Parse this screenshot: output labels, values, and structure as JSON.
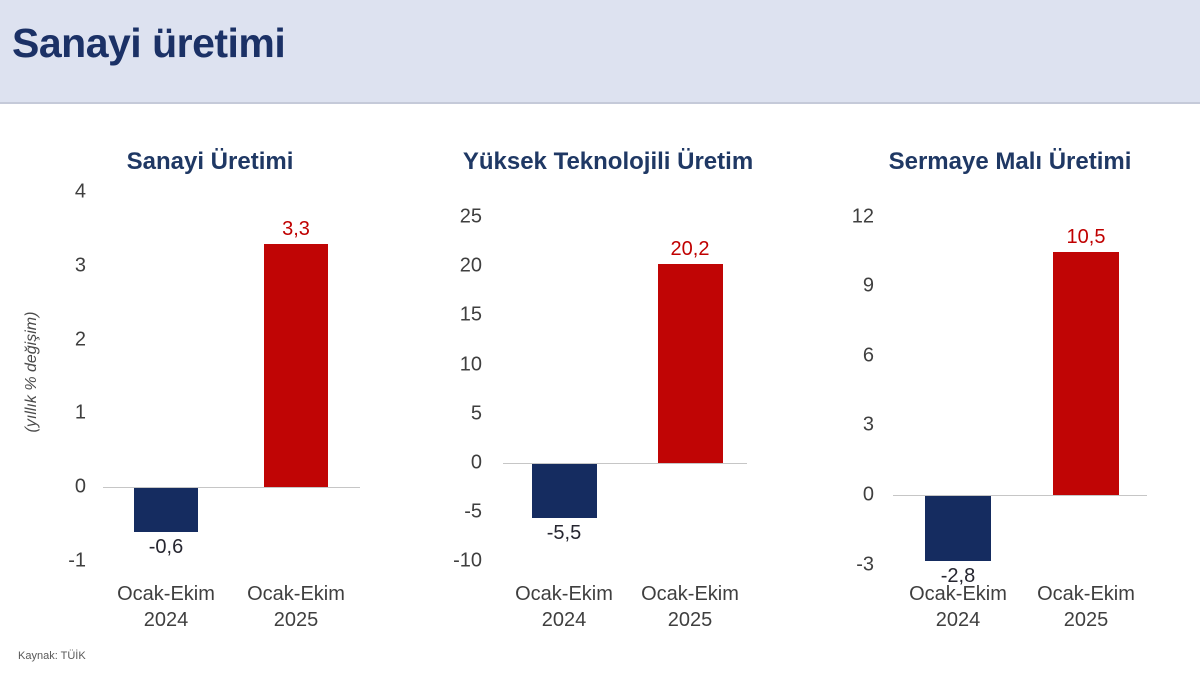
{
  "header": {
    "title": "Sanayi üretimi"
  },
  "source": "Kaynak: TÜİK",
  "colors": {
    "header_bg": "#dde2f0",
    "title_navy": "#1b3166",
    "chart_title_navy": "#1f3864",
    "bar_navy": "#152c60",
    "bar_red": "#c00505",
    "label_red": "#c00000",
    "label_dark": "#262630",
    "tick_gray": "#3f3f3f"
  },
  "chart_data": [
    {
      "type": "bar",
      "title": "Sanayi Üretimi",
      "ylabel": "(yıllık % değişim)",
      "categories": [
        [
          "Ocak-Ekim",
          "2024"
        ],
        [
          "Ocak-Ekim",
          "2025"
        ]
      ],
      "values": [
        -0.6,
        3.3
      ],
      "value_labels": [
        "-0,6",
        "3,3"
      ],
      "bar_color_names": [
        "navy",
        "red"
      ],
      "yticks": [
        "4",
        "3",
        "2",
        "1",
        "0",
        "-1"
      ],
      "ytick_values": [
        4,
        3,
        2,
        1,
        0,
        -1
      ],
      "ylim": [
        -1,
        4
      ],
      "grid": false,
      "legend": "none"
    },
    {
      "type": "bar",
      "title": "Yüksek Teknolojili Üretim",
      "ylabel": "",
      "categories": [
        [
          "Ocak-Ekim",
          "2024"
        ],
        [
          "Ocak-Ekim",
          "2025"
        ]
      ],
      "values": [
        -5.5,
        20.2
      ],
      "value_labels": [
        "-5,5",
        "20,2"
      ],
      "bar_color_names": [
        "navy",
        "red"
      ],
      "yticks": [
        "25",
        "20",
        "15",
        "10",
        "5",
        "0",
        "-5",
        "-10"
      ],
      "ytick_values": [
        25,
        20,
        15,
        10,
        5,
        0,
        -5,
        -10
      ],
      "ylim": [
        -10,
        25
      ],
      "grid": false,
      "legend": "none"
    },
    {
      "type": "bar",
      "title": "Sermaye Malı Üretimi",
      "ylabel": "",
      "categories": [
        [
          "Ocak-Ekim",
          "2024"
        ],
        [
          "Ocak-Ekim",
          "2025"
        ]
      ],
      "values": [
        -2.8,
        10.5
      ],
      "value_labels": [
        "-2,8",
        "10,5"
      ],
      "bar_color_names": [
        "navy",
        "red"
      ],
      "yticks": [
        "12",
        "9",
        "6",
        "3",
        "0",
        "-3"
      ],
      "ytick_values": [
        12,
        9,
        6,
        3,
        0,
        -3
      ],
      "ylim": [
        -3,
        12
      ],
      "grid": false,
      "legend": "none"
    }
  ]
}
